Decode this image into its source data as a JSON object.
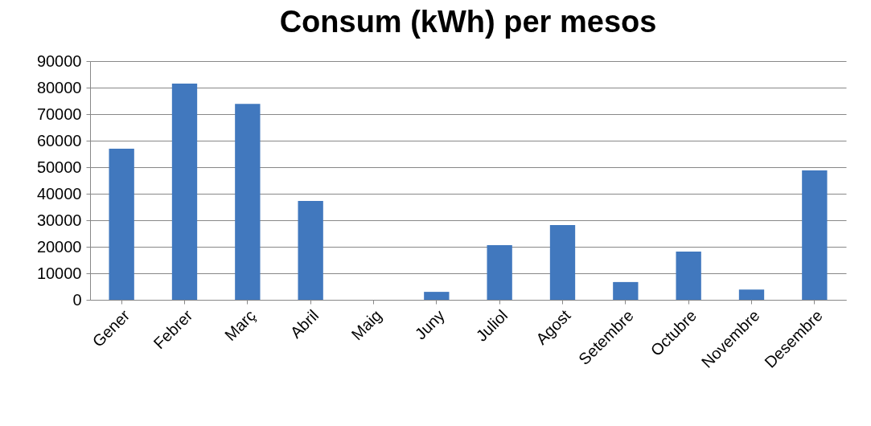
{
  "chart_data": {
    "type": "bar",
    "title": "Consum (kWh) per mesos",
    "categories": [
      "Gener",
      "Febrer",
      "Març",
      "Abril",
      "Maig",
      "Juny",
      "Juliol",
      "Agost",
      "Setembre",
      "Octubre",
      "Novembre",
      "Desembre"
    ],
    "values": [
      57000,
      81500,
      73900,
      37300,
      0,
      3000,
      20600,
      28200,
      6700,
      18200,
      3900,
      48800
    ],
    "color": "#4178be",
    "ylim": [
      0,
      90000
    ],
    "yticks": [
      0,
      10000,
      20000,
      30000,
      40000,
      50000,
      60000,
      70000,
      80000,
      90000
    ],
    "grid": "y"
  }
}
